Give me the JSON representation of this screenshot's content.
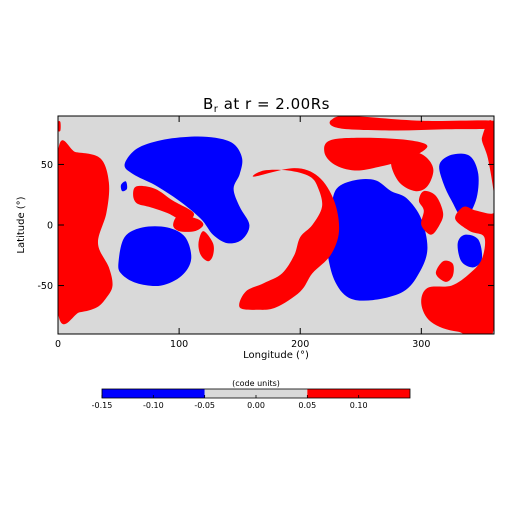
{
  "chart_data": {
    "type": "heatmap",
    "title_main": "B",
    "title_sub": "r",
    "title_rest": " at r = 2.00Rs",
    "xlabel": "Longitude (°)",
    "ylabel": "Latitude (°)",
    "xlim": [
      0,
      360
    ],
    "ylim": [
      -90,
      90
    ],
    "xticks": [
      0,
      100,
      200,
      300
    ],
    "yticks": [
      -50,
      0,
      50
    ],
    "background_color": "#d9d9d9",
    "regions": [
      {
        "sign": "negative",
        "color": "#0000ff",
        "lonlat": [
          [
            55,
            50
          ],
          [
            65,
            63
          ],
          [
            85,
            70
          ],
          [
            110,
            73
          ],
          [
            130,
            72
          ],
          [
            145,
            67
          ],
          [
            152,
            55
          ],
          [
            150,
            42
          ],
          [
            145,
            30
          ],
          [
            150,
            15
          ],
          [
            158,
            0
          ],
          [
            152,
            -12
          ],
          [
            140,
            -15
          ],
          [
            128,
            -8
          ],
          [
            118,
            5
          ],
          [
            100,
            20
          ],
          [
            80,
            33
          ],
          [
            62,
            42
          ]
        ]
      },
      {
        "sign": "negative",
        "color": "#0000ff",
        "lonlat": [
          [
            50,
            -30
          ],
          [
            55,
            -10
          ],
          [
            70,
            -2
          ],
          [
            90,
            -2
          ],
          [
            105,
            -10
          ],
          [
            110,
            -28
          ],
          [
            102,
            -42
          ],
          [
            85,
            -50
          ],
          [
            65,
            -48
          ],
          [
            52,
            -40
          ]
        ]
      },
      {
        "sign": "negative",
        "color": "#0000ff",
        "lonlat": [
          [
            52,
            33
          ],
          [
            56,
            36
          ],
          [
            57,
            30
          ],
          [
            53,
            28
          ]
        ]
      },
      {
        "sign": "negative",
        "color": "#0000ff",
        "lonlat": [
          [
            225,
            12
          ],
          [
            230,
            30
          ],
          [
            245,
            37
          ],
          [
            262,
            37
          ],
          [
            275,
            28
          ],
          [
            288,
            22
          ],
          [
            300,
            5
          ],
          [
            305,
            -20
          ],
          [
            298,
            -40
          ],
          [
            285,
            -55
          ],
          [
            260,
            -62
          ],
          [
            240,
            -60
          ],
          [
            228,
            -45
          ],
          [
            222,
            -20
          ],
          [
            222,
            0
          ]
        ]
      },
      {
        "sign": "negative",
        "color": "#0000ff",
        "lonlat": [
          [
            315,
            50
          ],
          [
            325,
            58
          ],
          [
            340,
            57
          ],
          [
            347,
            42
          ],
          [
            345,
            20
          ],
          [
            335,
            5
          ],
          [
            325,
            20
          ],
          [
            318,
            35
          ]
        ]
      },
      {
        "sign": "negative",
        "color": "#0000ff",
        "lonlat": [
          [
            330,
            -15
          ],
          [
            336,
            -8
          ],
          [
            347,
            -12
          ],
          [
            350,
            -28
          ],
          [
            343,
            -35
          ],
          [
            333,
            -30
          ]
        ]
      },
      {
        "sign": "positive",
        "color": "#ff0000",
        "lonlat": [
          [
            0,
            85
          ],
          [
            2,
            85
          ],
          [
            2,
            78
          ],
          [
            0,
            78
          ]
        ]
      },
      {
        "sign": "positive",
        "color": "#ff0000",
        "lonlat": [
          [
            0,
            60
          ],
          [
            15,
            60
          ],
          [
            35,
            55
          ],
          [
            42,
            35
          ],
          [
            40,
            10
          ],
          [
            33,
            -15
          ],
          [
            42,
            -35
          ],
          [
            45,
            -50
          ],
          [
            40,
            -60
          ],
          [
            32,
            -68
          ],
          [
            18,
            -72
          ],
          [
            0,
            -72
          ]
        ]
      },
      {
        "sign": "positive",
        "color": "#ff0000",
        "lonlat": [
          [
            62,
            25
          ],
          [
            65,
            32
          ],
          [
            80,
            30
          ],
          [
            95,
            20
          ],
          [
            112,
            10
          ],
          [
            105,
            3
          ],
          [
            90,
            10
          ],
          [
            75,
            15
          ],
          [
            65,
            18
          ]
        ]
      },
      {
        "sign": "positive",
        "color": "#ff0000",
        "lonlat": [
          [
            95,
            0
          ],
          [
            100,
            8
          ],
          [
            115,
            5
          ],
          [
            120,
            0
          ],
          [
            113,
            -5
          ],
          [
            100,
            -5
          ]
        ]
      },
      {
        "sign": "positive",
        "color": "#ff0000",
        "lonlat": [
          [
            116,
            -15
          ],
          [
            120,
            -5
          ],
          [
            128,
            -15
          ],
          [
            128,
            -25
          ],
          [
            124,
            -30
          ],
          [
            118,
            -25
          ]
        ]
      },
      {
        "sign": "positive",
        "color": "#ff0000",
        "lonlat": [
          [
            162,
            40
          ],
          [
            170,
            45
          ],
          [
            190,
            45
          ],
          [
            208,
            40
          ],
          [
            215,
            30
          ],
          [
            218,
            15
          ],
          [
            210,
            0
          ],
          [
            200,
            -10
          ],
          [
            195,
            -25
          ],
          [
            185,
            -40
          ],
          [
            170,
            -48
          ],
          [
            155,
            -55
          ],
          [
            150,
            -68
          ],
          [
            165,
            -70
          ],
          [
            180,
            -68
          ],
          [
            200,
            -55
          ],
          [
            210,
            -40
          ],
          [
            225,
            -25
          ],
          [
            232,
            -5
          ],
          [
            228,
            20
          ],
          [
            215,
            40
          ],
          [
            195,
            47
          ]
        ]
      },
      {
        "sign": "positive",
        "color": "#ff0000",
        "lonlat": [
          [
            226,
            87
          ],
          [
            240,
            90
          ],
          [
            300,
            86
          ],
          [
            360,
            86
          ],
          [
            360,
            80
          ],
          [
            320,
            79
          ],
          [
            280,
            78
          ],
          [
            240,
            79
          ],
          [
            226,
            82
          ]
        ]
      },
      {
        "sign": "positive",
        "color": "#ff0000",
        "lonlat": [
          [
            220,
            60
          ],
          [
            225,
            70
          ],
          [
            255,
            72
          ],
          [
            290,
            70
          ],
          [
            305,
            65
          ],
          [
            290,
            55
          ],
          [
            265,
            48
          ],
          [
            245,
            45
          ],
          [
            228,
            50
          ]
        ]
      },
      {
        "sign": "positive",
        "color": "#ff0000",
        "lonlat": [
          [
            275,
            50
          ],
          [
            280,
            58
          ],
          [
            295,
            60
          ],
          [
            305,
            55
          ],
          [
            310,
            45
          ],
          [
            305,
            32
          ],
          [
            295,
            28
          ],
          [
            282,
            35
          ]
        ]
      },
      {
        "sign": "positive",
        "color": "#ff0000",
        "lonlat": [
          [
            298,
            20
          ],
          [
            302,
            28
          ],
          [
            312,
            24
          ],
          [
            318,
            10
          ],
          [
            315,
            0
          ],
          [
            308,
            -8
          ],
          [
            300,
            0
          ],
          [
            302,
            12
          ]
        ]
      },
      {
        "sign": "positive",
        "color": "#ff0000",
        "lonlat": [
          [
            328,
            5
          ],
          [
            335,
            15
          ],
          [
            345,
            12
          ],
          [
            360,
            10
          ],
          [
            360,
            25
          ],
          [
            355,
            55
          ],
          [
            350,
            72
          ],
          [
            360,
            75
          ],
          [
            360,
            -85
          ],
          [
            330,
            -88
          ],
          [
            308,
            -80
          ],
          [
            300,
            -65
          ],
          [
            305,
            -52
          ],
          [
            325,
            -50
          ],
          [
            340,
            -40
          ],
          [
            350,
            -28
          ],
          [
            352,
            -10
          ],
          [
            340,
            -5
          ]
        ]
      },
      {
        "sign": "positive",
        "color": "#ff0000",
        "lonlat": [
          [
            312,
            -40
          ],
          [
            318,
            -30
          ],
          [
            326,
            -32
          ],
          [
            326,
            -42
          ],
          [
            320,
            -47
          ]
        ]
      }
    ],
    "colorbar": {
      "label": "(code units)",
      "range": [
        -0.15,
        0.15
      ],
      "ticks": [
        -0.15,
        -0.1,
        -0.05,
        0.0,
        0.05,
        0.1
      ],
      "tick_labels": [
        "-0.15",
        "-0.10",
        "-0.05",
        "0.00",
        "0.05",
        "0.10"
      ],
      "segments": [
        {
          "from": -0.15,
          "to": -0.05,
          "color": "#0000ff"
        },
        {
          "from": -0.05,
          "to": 0.05,
          "color": "#d9d9d9"
        },
        {
          "from": 0.05,
          "to": 0.15,
          "color": "#ff0000"
        }
      ]
    }
  }
}
